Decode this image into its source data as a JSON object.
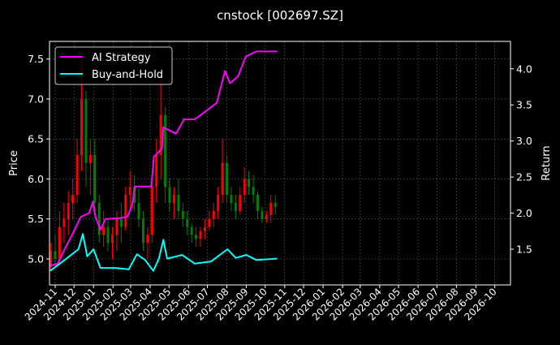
{
  "chart_data": {
    "type": "line",
    "title": "cnstock [002697.SZ]",
    "ylabel": "Price",
    "y2label": "Return",
    "xlim": [
      "2024-10-23",
      "2026-10-26"
    ],
    "ylim": [
      4.675,
      7.72
    ],
    "y2lim": [
      1.005,
      4.38
    ],
    "grid": true,
    "legend_position": "top-left",
    "x_ticks": [
      "2024-11",
      "2024-12",
      "2025-01",
      "2025-02",
      "2025-03",
      "2025-04",
      "2025-05",
      "2025-06",
      "2025-07",
      "2025-08",
      "2025-09",
      "2025-10",
      "2025-11",
      "2025-12",
      "2026-01",
      "2026-02",
      "2026-03",
      "2026-04",
      "2026-05",
      "2026-06",
      "2026-07",
      "2026-08",
      "2026-09",
      "2026-10"
    ],
    "y_ticks": [
      "5.0",
      "5.5",
      "6.0",
      "6.5",
      "7.0",
      "7.5"
    ],
    "y2_ticks": [
      "1.5",
      "2.0",
      "2.5",
      "3.0",
      "3.5",
      "4.0"
    ],
    "colors": {
      "background": "#000000",
      "up": "#ff0000",
      "down": "#008000",
      "strategy": "#ff00ff",
      "buy_hold": "#00ffff",
      "grid": "#555555"
    },
    "candles_fields": [
      "date",
      "open",
      "high",
      "low",
      "close"
    ],
    "candles": [
      [
        "2024-10-25",
        4.9,
        5.2,
        4.85,
        5.1
      ],
      [
        "2024-11-01",
        5.1,
        5.3,
        4.9,
        5.0
      ],
      [
        "2024-11-08",
        5.0,
        5.6,
        4.95,
        5.4
      ],
      [
        "2024-11-15",
        5.4,
        5.7,
        5.2,
        5.5
      ],
      [
        "2024-11-22",
        5.5,
        5.85,
        5.3,
        5.7
      ],
      [
        "2024-11-29",
        5.7,
        6.0,
        5.5,
        5.8
      ],
      [
        "2024-12-06",
        5.8,
        6.5,
        5.7,
        6.3
      ],
      [
        "2024-12-13",
        6.3,
        7.5,
        6.1,
        7.0
      ],
      [
        "2024-12-20",
        7.0,
        7.1,
        5.9,
        6.2
      ],
      [
        "2024-12-27",
        6.2,
        6.5,
        5.8,
        6.3
      ],
      [
        "2025-01-03",
        6.3,
        6.5,
        5.6,
        5.7
      ],
      [
        "2025-01-10",
        5.7,
        5.8,
        5.2,
        5.3
      ],
      [
        "2025-01-17",
        5.3,
        5.6,
        5.15,
        5.4
      ],
      [
        "2025-01-24",
        5.4,
        5.5,
        5.1,
        5.2
      ],
      [
        "2025-01-31",
        5.2,
        5.4,
        5.0,
        5.3
      ],
      [
        "2025-02-07",
        5.3,
        5.6,
        5.1,
        5.5
      ],
      [
        "2025-02-14",
        5.5,
        5.7,
        5.2,
        5.4
      ],
      [
        "2025-02-21",
        5.4,
        5.9,
        5.35,
        5.8
      ],
      [
        "2025-02-28",
        5.8,
        6.1,
        5.6,
        5.9
      ],
      [
        "2025-03-07",
        5.9,
        6.05,
        5.6,
        5.7
      ],
      [
        "2025-03-14",
        5.7,
        5.9,
        5.4,
        5.5
      ],
      [
        "2025-03-21",
        5.5,
        5.6,
        5.1,
        5.2
      ],
      [
        "2025-03-28",
        5.2,
        5.4,
        5.0,
        5.3
      ],
      [
        "2025-04-04",
        5.3,
        6.0,
        5.2,
        5.9
      ],
      [
        "2025-04-11",
        5.9,
        6.5,
        5.7,
        6.3
      ],
      [
        "2025-04-18",
        6.3,
        7.3,
        6.0,
        6.8
      ],
      [
        "2025-04-25",
        6.8,
        6.9,
        5.7,
        5.9
      ],
      [
        "2025-05-02",
        5.9,
        6.0,
        5.6,
        5.7
      ],
      [
        "2025-05-09",
        5.7,
        5.9,
        5.5,
        5.8
      ],
      [
        "2025-05-16",
        5.8,
        6.0,
        5.5,
        5.6
      ],
      [
        "2025-05-23",
        5.6,
        5.7,
        5.4,
        5.5
      ],
      [
        "2025-05-30",
        5.5,
        5.6,
        5.3,
        5.4
      ],
      [
        "2025-06-06",
        5.4,
        5.45,
        5.2,
        5.3
      ],
      [
        "2025-06-13",
        5.3,
        5.4,
        5.15,
        5.25
      ],
      [
        "2025-06-20",
        5.25,
        5.4,
        5.15,
        5.35
      ],
      [
        "2025-06-27",
        5.35,
        5.5,
        5.25,
        5.4
      ],
      [
        "2025-07-04",
        5.4,
        5.6,
        5.35,
        5.5
      ],
      [
        "2025-07-11",
        5.5,
        5.7,
        5.4,
        5.6
      ],
      [
        "2025-07-18",
        5.6,
        5.9,
        5.5,
        5.8
      ],
      [
        "2025-07-25",
        5.8,
        6.5,
        5.7,
        6.2
      ],
      [
        "2025-08-01",
        6.2,
        6.3,
        5.7,
        5.8
      ],
      [
        "2025-08-08",
        5.8,
        5.9,
        5.6,
        5.7
      ],
      [
        "2025-08-15",
        5.7,
        5.8,
        5.5,
        5.6
      ],
      [
        "2025-08-22",
        5.6,
        5.9,
        5.55,
        5.8
      ],
      [
        "2025-08-29",
        5.8,
        6.15,
        5.7,
        6.0
      ],
      [
        "2025-09-05",
        6.0,
        6.1,
        5.8,
        5.9
      ],
      [
        "2025-09-12",
        5.9,
        6.05,
        5.7,
        5.8
      ],
      [
        "2025-09-19",
        5.8,
        5.85,
        5.5,
        5.6
      ],
      [
        "2025-09-26",
        5.6,
        5.65,
        5.45,
        5.5
      ],
      [
        "2025-10-03",
        5.5,
        5.6,
        5.45,
        5.55
      ],
      [
        "2025-10-10",
        5.55,
        5.8,
        5.45,
        5.7
      ],
      [
        "2025-10-17",
        5.7,
        5.8,
        5.55,
        5.65
      ]
    ],
    "series": [
      {
        "name": "AI Strategy",
        "axis": "right",
        "points": [
          [
            "2024-10-24",
            1.27
          ],
          [
            "2024-11-05",
            1.3
          ],
          [
            "2024-11-16",
            1.5
          ],
          [
            "2024-11-28",
            1.7
          ],
          [
            "2024-12-12",
            1.95
          ],
          [
            "2024-12-25",
            2.0
          ],
          [
            "2024-12-31",
            2.16
          ],
          [
            "2025-01-04",
            1.95
          ],
          [
            "2025-01-12",
            1.77
          ],
          [
            "2025-01-20",
            1.92
          ],
          [
            "2025-02-10",
            1.93
          ],
          [
            "2025-02-24",
            1.95
          ],
          [
            "2025-03-03",
            2.1
          ],
          [
            "2025-03-08",
            2.37
          ],
          [
            "2025-04-03",
            2.37
          ],
          [
            "2025-04-07",
            2.78
          ],
          [
            "2025-04-20",
            2.9
          ],
          [
            "2025-04-22",
            3.19
          ],
          [
            "2025-05-12",
            3.1
          ],
          [
            "2025-05-25",
            3.3
          ],
          [
            "2025-06-11",
            3.3
          ],
          [
            "2025-06-28",
            3.41
          ],
          [
            "2025-07-16",
            3.53
          ],
          [
            "2025-07-29",
            3.97
          ],
          [
            "2025-08-06",
            3.8
          ],
          [
            "2025-08-19",
            3.9
          ],
          [
            "2025-08-31",
            4.17
          ],
          [
            "2025-09-17",
            4.24
          ],
          [
            "2025-10-20",
            4.24
          ]
        ]
      },
      {
        "name": "Buy-and-Hold",
        "axis": "right",
        "points": [
          [
            "2024-10-24",
            1.2
          ],
          [
            "2024-11-16",
            1.35
          ],
          [
            "2024-12-08",
            1.5
          ],
          [
            "2024-12-15",
            1.71
          ],
          [
            "2024-12-22",
            1.4
          ],
          [
            "2025-01-01",
            1.5
          ],
          [
            "2025-01-12",
            1.24
          ],
          [
            "2025-02-06",
            1.24
          ],
          [
            "2025-02-26",
            1.22
          ],
          [
            "2025-03-11",
            1.43
          ],
          [
            "2025-03-24",
            1.35
          ],
          [
            "2025-04-06",
            1.2
          ],
          [
            "2025-04-15",
            1.37
          ],
          [
            "2025-04-22",
            1.63
          ],
          [
            "2025-04-28",
            1.37
          ],
          [
            "2025-05-22",
            1.42
          ],
          [
            "2025-06-11",
            1.3
          ],
          [
            "2025-07-07",
            1.33
          ],
          [
            "2025-08-02",
            1.5
          ],
          [
            "2025-08-15",
            1.38
          ],
          [
            "2025-09-01",
            1.42
          ],
          [
            "2025-09-17",
            1.35
          ],
          [
            "2025-10-20",
            1.37
          ]
        ]
      }
    ]
  }
}
